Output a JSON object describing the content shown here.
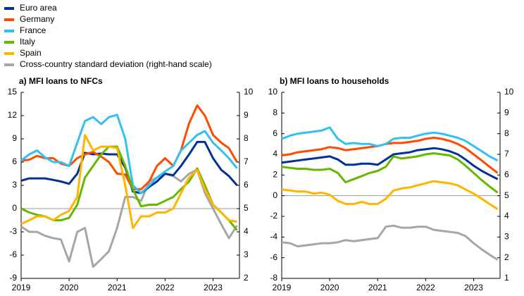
{
  "chart_data": [
    {
      "type": "line",
      "title": "a) MFI loans to NFCs",
      "x": [
        2019,
        2019.17,
        2019.33,
        2019.5,
        2019.67,
        2019.83,
        2020,
        2020.17,
        2020.33,
        2020.5,
        2020.67,
        2020.83,
        2021,
        2021.17,
        2021.33,
        2021.5,
        2021.67,
        2021.83,
        2022,
        2022.17,
        2022.33,
        2022.5,
        2022.67,
        2022.83,
        2023,
        2023.17,
        2023.33,
        2023.5
      ],
      "xlim": [
        2019,
        2023.55
      ],
      "xticks": [
        2019,
        2020,
        2021,
        2022,
        2023
      ],
      "ylim": [
        -9,
        15
      ],
      "yticks": [
        -9,
        -6,
        -3,
        0,
        3,
        6,
        9,
        12,
        15
      ],
      "y2lim": [
        2,
        10
      ],
      "y2ticks": [
        2,
        3,
        4,
        5,
        6,
        7,
        8,
        9,
        10
      ],
      "series": [
        {
          "name": "Euro area",
          "color": "#003299",
          "values": [
            3.6,
            3.9,
            3.9,
            3.9,
            3.7,
            3.5,
            3.2,
            4.5,
            7.2,
            7.0,
            7.1,
            7.0,
            7.0,
            5.3,
            2.2,
            2.0,
            2.8,
            3.5,
            4.5,
            4.3,
            5.5,
            7.0,
            8.6,
            8.6,
            6.5,
            5.0,
            4.2,
            3.0
          ]
        },
        {
          "name": "Germany",
          "color": "#ff4b00",
          "values": [
            6.2,
            6.3,
            6.8,
            6.5,
            6.5,
            5.8,
            5.5,
            6.5,
            7.0,
            7.3,
            6.7,
            6.0,
            4.5,
            4.4,
            2.5,
            2.5,
            3.5,
            5.5,
            6.5,
            5.5,
            7.5,
            11.0,
            13.3,
            12.0,
            9.5,
            8.5,
            7.8,
            6.0
          ]
        },
        {
          "name": "France",
          "color": "#33bff0",
          "values": [
            6.2,
            7.0,
            7.5,
            6.6,
            6.0,
            6.0,
            5.5,
            8.5,
            11.3,
            11.8,
            10.9,
            11.8,
            12.1,
            9.0,
            3.0,
            2.0,
            3.0,
            4.0,
            4.8,
            5.5,
            7.5,
            8.5,
            9.5,
            10.0,
            8.5,
            7.5,
            6.5,
            5.2
          ]
        },
        {
          "name": "Italy",
          "color": "#65b800",
          "values": [
            0,
            -0.5,
            -0.8,
            -1.0,
            -1.5,
            -1.5,
            -1.2,
            0.5,
            4.0,
            5.5,
            7.0,
            8.0,
            8.0,
            5.5,
            2.5,
            0.3,
            0.5,
            0.5,
            1.0,
            1.5,
            2.5,
            3.5,
            5.2,
            3.0,
            0.5,
            -0.5,
            -1.5,
            -2.8
          ]
        },
        {
          "name": "Spain",
          "color": "#ffb400",
          "values": [
            -2.0,
            -1.5,
            -1.0,
            -1.0,
            -1.5,
            -0.8,
            -0.3,
            1.5,
            9.5,
            7.5,
            8.0,
            8.0,
            7.8,
            3.0,
            -2.5,
            -1.0,
            -1.0,
            -0.5,
            -0.5,
            0,
            2.0,
            4.0,
            5.0,
            2.5,
            0.5,
            -0.5,
            -1.5,
            -1.7
          ]
        },
        {
          "name": "Cross-country standard deviation (right-hand scale)",
          "color": "#a6a6a6",
          "axis": "y2",
          "values": [
            4.23,
            4.0,
            4.0,
            3.83,
            3.73,
            3.67,
            2.73,
            4.0,
            4.17,
            2.5,
            2.83,
            3.17,
            4.17,
            5.5,
            5.5,
            5.33,
            6.17,
            6.33,
            6.5,
            6.4,
            6.17,
            6.5,
            6.67,
            5.67,
            5.0,
            4.33,
            3.73,
            4.27
          ]
        }
      ]
    },
    {
      "type": "line",
      "title": "b) MFI loans to households",
      "x": [
        2019,
        2019.17,
        2019.33,
        2019.5,
        2019.67,
        2019.83,
        2020,
        2020.17,
        2020.33,
        2020.5,
        2020.67,
        2020.83,
        2021,
        2021.17,
        2021.33,
        2021.5,
        2021.67,
        2021.83,
        2022,
        2022.17,
        2022.33,
        2022.5,
        2022.67,
        2022.83,
        2023,
        2023.17,
        2023.33,
        2023.5
      ],
      "xlim": [
        2019,
        2023.55
      ],
      "xticks": [
        2019,
        2020,
        2021,
        2022,
        2023
      ],
      "ylim": [
        -8,
        10
      ],
      "yticks": [
        -8,
        -6,
        -4,
        -2,
        0,
        2,
        4,
        6,
        8,
        10
      ],
      "y2lim": [
        1,
        10
      ],
      "y2ticks": [
        1,
        2,
        3,
        4,
        5,
        6,
        7,
        8,
        9,
        10
      ],
      "series": [
        {
          "values": [
            3.2,
            3.3,
            3.4,
            3.5,
            3.6,
            3.7,
            3.8,
            3.5,
            3.0,
            3.0,
            3.1,
            3.1,
            3.0,
            3.5,
            4.0,
            4.1,
            4.2,
            4.4,
            4.5,
            4.6,
            4.5,
            4.3,
            4.0,
            3.5,
            2.9,
            2.4,
            2.0,
            1.6
          ]
        },
        {
          "values": [
            3.9,
            4.0,
            4.2,
            4.3,
            4.4,
            4.5,
            4.7,
            4.6,
            4.4,
            4.5,
            4.6,
            4.7,
            4.8,
            5.0,
            5.1,
            5.1,
            5.2,
            5.3,
            5.5,
            5.6,
            5.5,
            5.3,
            5.0,
            4.6,
            4.0,
            3.4,
            2.8,
            2.2
          ]
        },
        {
          "values": [
            5.5,
            5.8,
            6.0,
            6.1,
            6.2,
            6.3,
            6.6,
            5.5,
            5.0,
            5.1,
            5.0,
            5.0,
            4.8,
            5.0,
            5.5,
            5.6,
            5.6,
            5.8,
            6.0,
            6.1,
            6.0,
            5.8,
            5.6,
            5.3,
            4.8,
            4.3,
            3.8,
            3.4
          ]
        },
        {
          "values": [
            2.8,
            2.7,
            2.6,
            2.6,
            2.5,
            2.5,
            2.6,
            2.2,
            1.3,
            1.6,
            1.9,
            2.2,
            2.4,
            2.8,
            3.8,
            3.6,
            3.7,
            3.8,
            4.0,
            4.1,
            4.0,
            3.9,
            3.5,
            2.9,
            2.2,
            1.5,
            0.9,
            0.3
          ]
        },
        {
          "values": [
            0.6,
            0.5,
            0.4,
            0.4,
            0.2,
            0.3,
            0.1,
            -0.5,
            -0.8,
            -0.8,
            -0.6,
            -0.8,
            -0.8,
            -0.3,
            0.5,
            0.7,
            0.8,
            1.0,
            1.2,
            1.4,
            1.3,
            1.2,
            1.0,
            0.6,
            0.2,
            -0.3,
            -0.8,
            -1.3
          ]
        },
        {
          "axis": "y2",
          "values": [
            2.75,
            2.7,
            2.55,
            2.6,
            2.65,
            2.7,
            2.7,
            2.75,
            2.85,
            2.8,
            2.85,
            2.9,
            2.95,
            3.5,
            3.55,
            3.45,
            3.45,
            3.5,
            3.5,
            3.35,
            3.3,
            3.25,
            3.2,
            3.05,
            2.7,
            2.4,
            2.15,
            1.9
          ]
        }
      ]
    }
  ]
}
